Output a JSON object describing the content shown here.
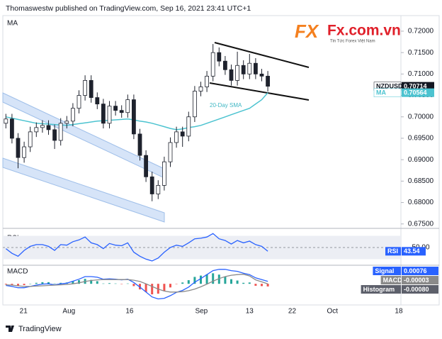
{
  "header": {
    "published": "Thomaswestw published on TradingView.com, Sep 16, 2021 23:41 UTC+1",
    "footer": "TradingView"
  },
  "logo": {
    "mark": "FX",
    "name": "Fx.com.vn",
    "tagline": "Tin Tức Forex Việt Nam"
  },
  "chart_data": [
    {
      "type": "candlestick",
      "title": "MA",
      "symbol": "NZDUSD",
      "up_color": "#ffffff",
      "down_color": "#1e222d",
      "open": [
        0.6985,
        0.6995,
        0.695,
        0.6905,
        0.693,
        0.6965,
        0.6975,
        0.698,
        0.697,
        0.6945,
        0.6985,
        0.699,
        0.702,
        0.705,
        0.7085,
        0.7045,
        0.703,
        0.6985,
        0.7025,
        0.7015,
        0.701,
        0.704,
        0.696,
        0.691,
        0.686,
        0.682,
        0.684,
        0.6895,
        0.694,
        0.6965,
        0.6955,
        0.7,
        0.706,
        0.707,
        0.7095,
        0.715,
        0.713,
        0.711,
        0.7085,
        0.712,
        0.71,
        0.7125,
        0.71,
        0.7095
      ],
      "high": [
        0.7007,
        0.7007,
        0.6962,
        0.6942,
        0.6977,
        0.6987,
        0.6992,
        0.6992,
        0.6982,
        0.6997,
        0.7002,
        0.7032,
        0.7062,
        0.7097,
        0.7097,
        0.7057,
        0.7042,
        0.7037,
        0.7037,
        0.7027,
        0.7052,
        0.7052,
        0.6972,
        0.6922,
        0.6872,
        0.6852,
        0.6907,
        0.6952,
        0.6977,
        0.6977,
        0.7012,
        0.7072,
        0.7082,
        0.7107,
        0.717,
        0.7162,
        0.7142,
        0.7122,
        0.7152,
        0.7132,
        0.7147,
        0.7137,
        0.7112,
        0.7107
      ],
      "low": [
        0.6973,
        0.6938,
        0.688,
        0.6893,
        0.6918,
        0.6953,
        0.6963,
        0.6958,
        0.6925,
        0.6933,
        0.6973,
        0.6978,
        0.7008,
        0.7038,
        0.7033,
        0.7018,
        0.6973,
        0.6973,
        0.7003,
        0.6998,
        0.6998,
        0.6948,
        0.6898,
        0.6848,
        0.6803,
        0.6808,
        0.6828,
        0.6883,
        0.6928,
        0.693,
        0.6943,
        0.6988,
        0.7048,
        0.7058,
        0.7083,
        0.7118,
        0.7098,
        0.7073,
        0.7073,
        0.7088,
        0.7088,
        0.7088,
        0.7083,
        0.7059
      ],
      "close": [
        0.6995,
        0.695,
        0.6905,
        0.693,
        0.6965,
        0.6975,
        0.698,
        0.697,
        0.6945,
        0.6985,
        0.699,
        0.702,
        0.705,
        0.7085,
        0.7045,
        0.703,
        0.6985,
        0.7025,
        0.7015,
        0.701,
        0.704,
        0.696,
        0.691,
        0.686,
        0.682,
        0.684,
        0.6895,
        0.694,
        0.6965,
        0.6955,
        0.7,
        0.706,
        0.707,
        0.7095,
        0.715,
        0.713,
        0.711,
        0.7085,
        0.712,
        0.71,
        0.7125,
        0.71,
        0.7095,
        0.70714
      ],
      "series": [
        {
          "name": "MA",
          "color": "#4cc3d0",
          "values": [
            0.7,
            0.6997,
            0.6994,
            0.6991,
            0.6988,
            0.6985,
            0.6984,
            0.6983,
            0.6982,
            0.6981,
            0.698,
            0.6982,
            0.6984,
            0.6986,
            0.6988,
            0.699,
            0.6991,
            0.6992,
            0.6993,
            0.6994,
            0.6995,
            0.6993,
            0.699,
            0.6988,
            0.6985,
            0.6981,
            0.6977,
            0.6973,
            0.697,
            0.6972,
            0.6975,
            0.6977,
            0.698,
            0.6985,
            0.699,
            0.6995,
            0.7,
            0.7005,
            0.701,
            0.7015,
            0.702,
            0.703,
            0.704,
            0.70564
          ]
        }
      ],
      "annotation": "20-Day SMA",
      "price_labels": [
        {
          "name": "NZDUSD",
          "value": 0.70714,
          "label": "0.70714"
        },
        {
          "name": "MA",
          "value": 0.70564,
          "label": "0.70564"
        }
      ],
      "ylim": [
        0.6743,
        0.7233
      ],
      "yticks": [
        {
          "value": 0.72,
          "label": "0.72000"
        },
        {
          "value": 0.715,
          "label": "0.71500"
        },
        {
          "value": 0.71,
          "label": "0.71000"
        },
        {
          "value": 0.705,
          "label": "0.70500"
        },
        {
          "value": 0.7,
          "label": "0.70000"
        },
        {
          "value": 0.695,
          "label": "0.69500"
        },
        {
          "value": 0.69,
          "label": "0.69000"
        },
        {
          "value": 0.685,
          "label": "0.68500"
        },
        {
          "value": 0.68,
          "label": "0.68000"
        },
        {
          "value": 0.675,
          "label": "0.67500"
        }
      ],
      "xlim": [
        -0.5,
        64.85
      ],
      "xticks": [
        {
          "value": 2.9,
          "label": "21"
        },
        {
          "value": 10.35,
          "label": "Aug"
        },
        {
          "value": 20.3,
          "label": "16"
        },
        {
          "value": 32.1,
          "label": "Sep"
        },
        {
          "value": 40,
          "label": "13"
        },
        {
          "value": 47,
          "label": "22"
        },
        {
          "value": 53.6,
          "label": "Oct"
        },
        {
          "value": 64.5,
          "label": "18"
        }
      ],
      "grid": false
    },
    {
      "type": "line",
      "title": "RSI",
      "series": [
        {
          "name": "RSI",
          "color": "#2962ff",
          "values": [
            48,
            40,
            35,
            45,
            52,
            55,
            55,
            52,
            45,
            55,
            54,
            60,
            63,
            68,
            58,
            55,
            48,
            57,
            54,
            53,
            58,
            42,
            35,
            30,
            27,
            32,
            42,
            50,
            54,
            52,
            58,
            65,
            66,
            68,
            74,
            65,
            62,
            56,
            62,
            58,
            61,
            55,
            52,
            43.54
          ]
        }
      ],
      "ylim": [
        22,
        78
      ],
      "band": [
        30,
        70
      ],
      "band_color": "#eceef4",
      "yticks": [
        {
          "value": 50,
          "label": "50.00"
        }
      ]
    },
    {
      "type": "macd",
      "title": "MACD",
      "series": [
        {
          "name": "Signal",
          "color": "#2962ff",
          "values": [
            -0.0005,
            -0.0008,
            -0.0012,
            -0.0012,
            -0.0008,
            -0.0004,
            -0.0001,
            0,
            -0.0003,
            0,
            0.0002,
            0.0008,
            0.0014,
            0.0022,
            0.0022,
            0.002,
            0.0014,
            0.0015,
            0.0014,
            0.0012,
            0.0014,
            0.0004,
            -0.001,
            -0.0025,
            -0.004,
            -0.0046,
            -0.0044,
            -0.0036,
            -0.0026,
            -0.002,
            -0.001,
            0.0005,
            0.0016,
            0.0028,
            0.004,
            0.0044,
            0.0044,
            0.004,
            0.0038,
            0.0032,
            0.0028,
            0.0018,
            0.0013,
            0.00076
          ]
        },
        {
          "name": "MACD",
          "color": "#8a8a8a",
          "values": [
            -0.0003,
            -0.0004,
            -0.0006,
            -0.0008,
            -0.0008,
            -0.0007,
            -0.0006,
            -0.0005,
            -0.0004,
            -0.0003,
            -0.0002,
            0,
            0.0003,
            0.0007,
            0.001,
            0.0012,
            0.0013,
            0.0013,
            0.0013,
            0.0013,
            0.0013,
            0.0011,
            0.0007,
            0,
            -0.0008,
            -0.0016,
            -0.0022,
            -0.0025,
            -0.0025,
            -0.0024,
            -0.0021,
            -0.0016,
            -0.0009,
            -0.0001,
            0.0008,
            0.0016,
            0.0022,
            0.0026,
            0.0028,
            0.0029,
            0.0024,
            0.0012,
            0.0006,
            -3e-05
          ]
        }
      ],
      "histogram": {
        "name": "Histogram",
        "pos_color": "#26a69a",
        "neg_color": "#ef5350",
        "last_label": "-0.00080",
        "values": [
          -0.0002,
          -0.0004,
          -0.0006,
          -0.0004,
          0,
          0.0003,
          0.0005,
          0.0005,
          0.0001,
          0.0003,
          0.0004,
          0.0008,
          0.0011,
          0.0015,
          0.0012,
          0.0008,
          0.0001,
          0.0002,
          0.0001,
          -0.0001,
          0.0001,
          -0.0007,
          -0.0017,
          -0.0025,
          -0.0032,
          -0.003,
          -0.0022,
          -0.0011,
          -0.0001,
          0.0004,
          0.0011,
          0.0021,
          0.0025,
          0.0029,
          0.0032,
          0.0028,
          0.0022,
          0.0014,
          0.001,
          0.0003,
          0.0004,
          -0.0006,
          -0.0007,
          -0.0008
        ]
      },
      "ylim": [
        -0.006,
        0.005
      ]
    }
  ]
}
